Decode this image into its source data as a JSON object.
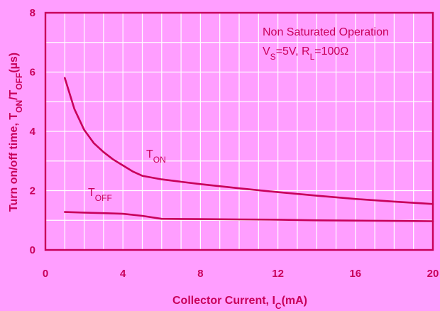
{
  "colors": {
    "background": "#ff9eff",
    "plot_area": "#ff9eff",
    "grid": "#ffffff",
    "ink": "#c8005a"
  },
  "chart_data": {
    "type": "line",
    "xlabel": {
      "main": "Collector Current, I",
      "sub": "C",
      "unit": "(mA)"
    },
    "ylabel": {
      "p1": "Turn on/off time, T",
      "s1": "ON",
      "p2": "/T",
      "s2": "OFF",
      "p3": "(µs)"
    },
    "xlim": [
      0,
      20
    ],
    "ylim": [
      0,
      8
    ],
    "xticks": [
      0,
      4,
      8,
      12,
      16,
      20
    ],
    "yticks": [
      0,
      2,
      4,
      6,
      8
    ],
    "x_minor_step": 1,
    "y_minor_step": 1,
    "grid": true,
    "annotation": {
      "line1": "Non Saturated Operation",
      "l2_a": "V",
      "l2_a_sub": "S",
      "l2_b": "=5V, R",
      "l2_b_sub": "L",
      "l2_c": "=100Ω"
    },
    "series": [
      {
        "name": "T",
        "name_sub": "ON",
        "x": [
          1,
          1.5,
          2,
          2.5,
          3,
          3.5,
          4,
          4.5,
          5,
          6,
          7,
          8,
          10,
          12,
          14,
          16,
          18,
          20
        ],
        "y": [
          5.8,
          4.75,
          4.05,
          3.6,
          3.3,
          3.05,
          2.85,
          2.65,
          2.5,
          2.38,
          2.3,
          2.22,
          2.08,
          1.95,
          1.83,
          1.72,
          1.63,
          1.55
        ]
      },
      {
        "name": "T",
        "name_sub": "OFF",
        "x": [
          1,
          2,
          3,
          4,
          5,
          6,
          8,
          10,
          12,
          14,
          16,
          18,
          20
        ],
        "y": [
          1.28,
          1.26,
          1.24,
          1.22,
          1.15,
          1.05,
          1.04,
          1.03,
          1.02,
          1.0,
          0.99,
          0.98,
          0.97
        ]
      }
    ]
  }
}
